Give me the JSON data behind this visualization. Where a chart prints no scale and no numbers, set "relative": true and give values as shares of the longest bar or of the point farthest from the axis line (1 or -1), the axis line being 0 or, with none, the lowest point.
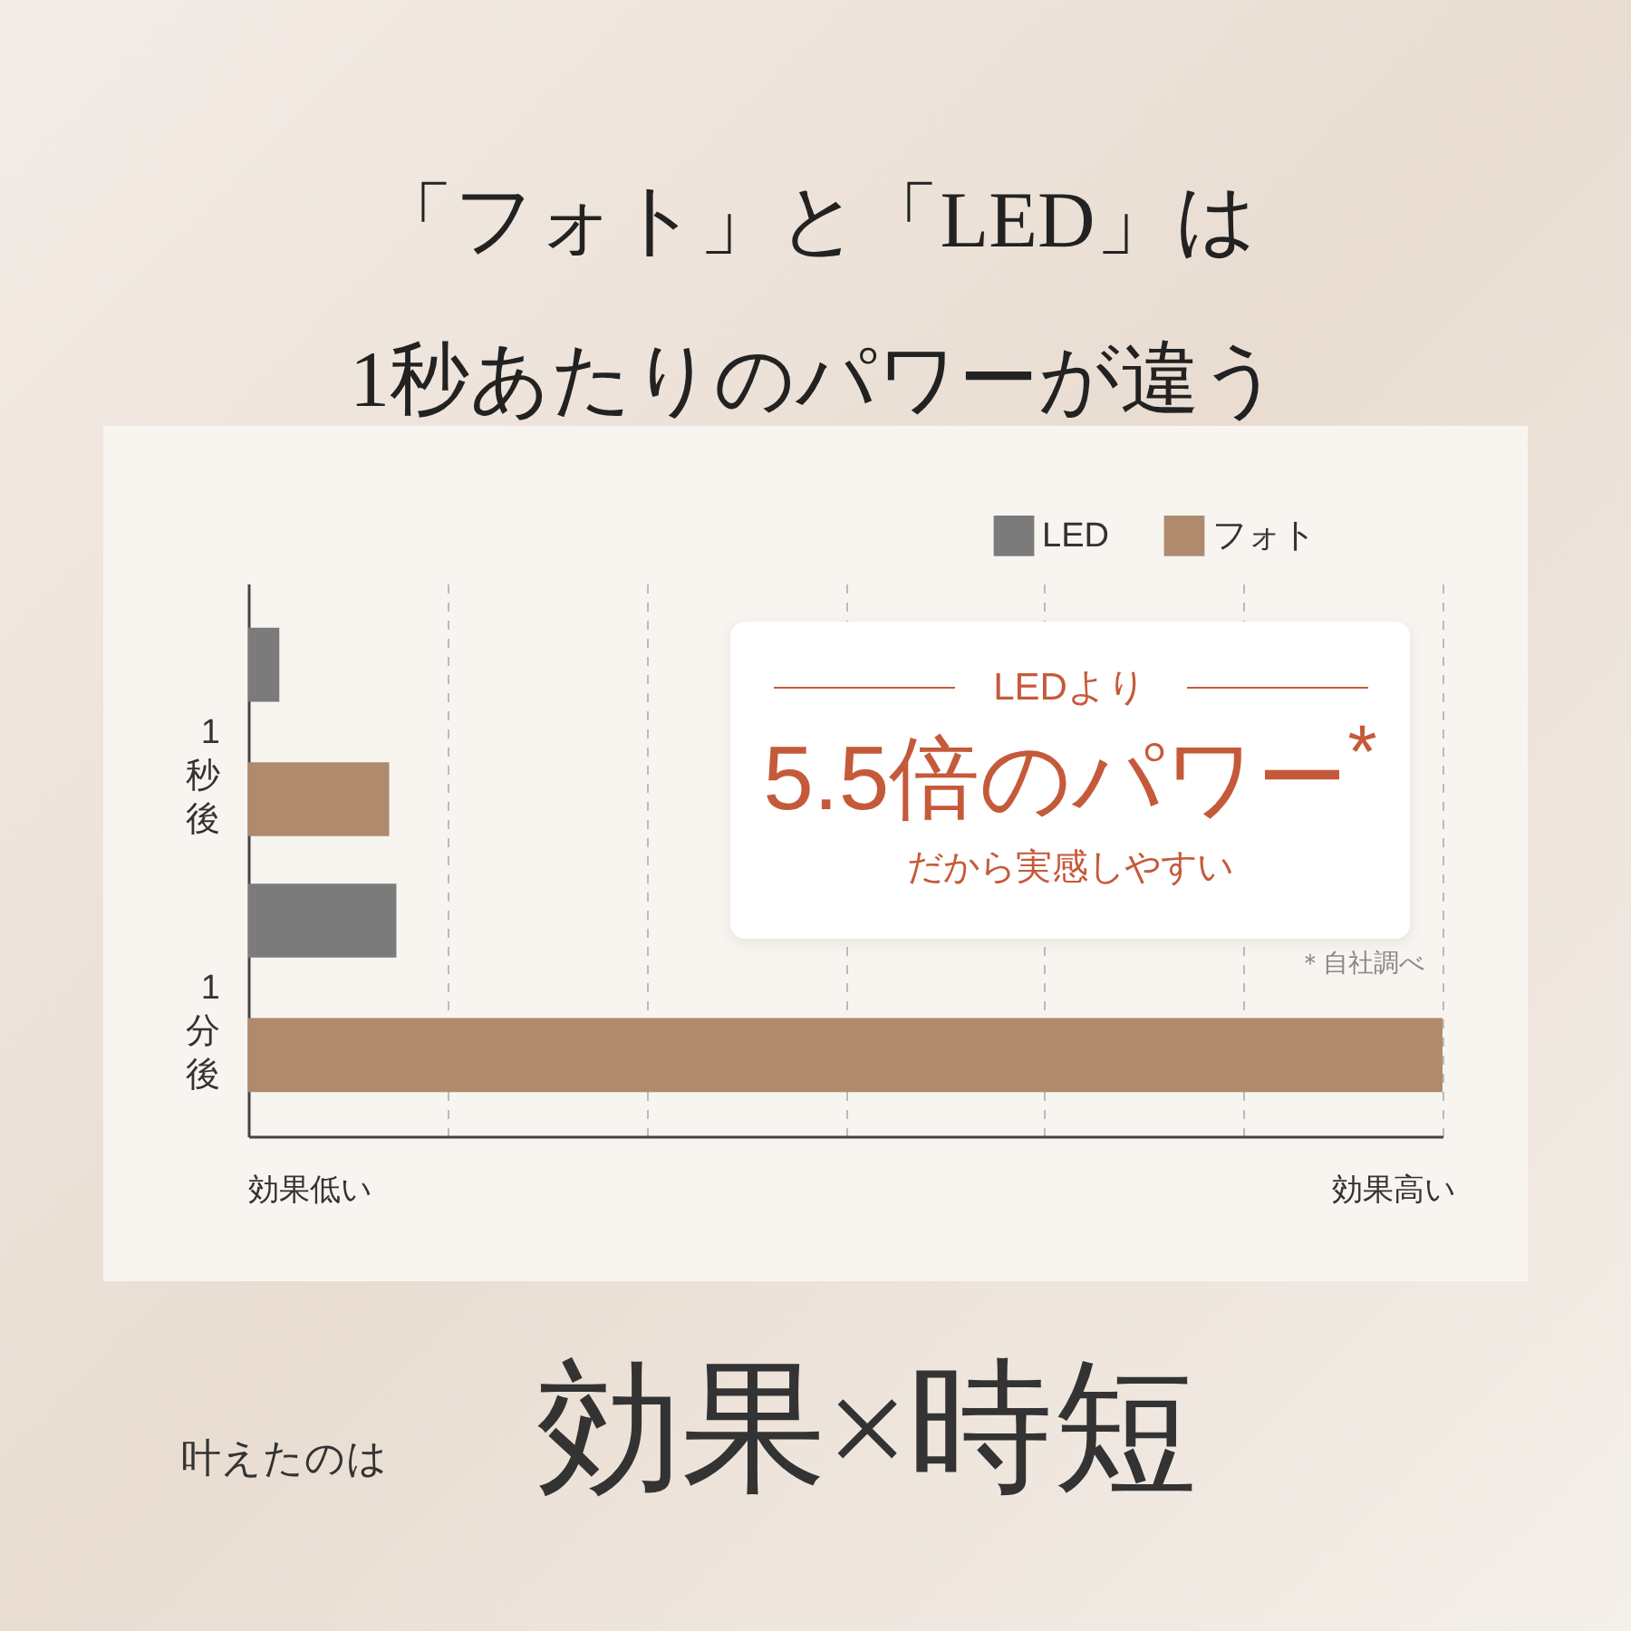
{
  "chart_data": {
    "type": "bar",
    "orientation": "horizontal",
    "relative": true,
    "title": "「フォト」と「LED」は\n1秒あたりのパワーが違う",
    "categories": [
      "1秒後",
      "1分後"
    ],
    "series": [
      {
        "name": "LED",
        "color": "#7b7b7b",
        "values": [
          0.026,
          0.124
        ]
      },
      {
        "name": "フォト",
        "color": "#b08a6c",
        "values": [
          0.118,
          1
        ]
      }
    ],
    "legend": "top right",
    "grid": "x",
    "annotations": [
      "LEDより",
      "5.5倍のパワー$^{*}$",
      "だから実感しやすい",
      "＊自社調べ",
      "効果低い",
      "効果高い",
      "叶えたのは",
      "効果×時短"
    ]
  }
}
